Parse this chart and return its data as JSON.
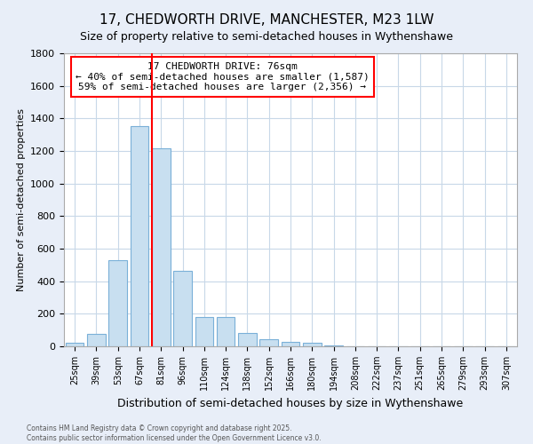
{
  "title": "17, CHEDWORTH DRIVE, MANCHESTER, M23 1LW",
  "subtitle": "Size of property relative to semi-detached houses in Wythenshawe",
  "xlabel": "Distribution of semi-detached houses by size in Wythenshawe",
  "ylabel": "Number of semi-detached properties",
  "bar_color": "#c8dff0",
  "bar_edge_color": "#7ab0d8",
  "categories": [
    "25sqm",
    "39sqm",
    "53sqm",
    "67sqm",
    "81sqm",
    "96sqm",
    "110sqm",
    "124sqm",
    "138sqm",
    "152sqm",
    "166sqm",
    "180sqm",
    "194sqm",
    "208sqm",
    "222sqm",
    "237sqm",
    "251sqm",
    "265sqm",
    "279sqm",
    "293sqm",
    "307sqm"
  ],
  "values": [
    20,
    75,
    530,
    1355,
    1215,
    465,
    180,
    180,
    80,
    45,
    30,
    20,
    5,
    0,
    0,
    0,
    0,
    0,
    0,
    0,
    0
  ],
  "ylim": [
    0,
    1800
  ],
  "yticks": [
    0,
    200,
    400,
    600,
    800,
    1000,
    1200,
    1400,
    1600,
    1800
  ],
  "vline_x": 4.0,
  "annotation_title": "17 CHEDWORTH DRIVE: 76sqm",
  "annotation_line1": "← 40% of semi-detached houses are smaller (1,587)",
  "annotation_line2": "59% of semi-detached houses are larger (2,356) →",
  "footer": "Contains HM Land Registry data © Crown copyright and database right 2025.\nContains public sector information licensed under the Open Government Licence v3.0.",
  "fig_bg_color": "#e8eef8",
  "plot_bg_color": "#ffffff",
  "grid_color": "#c8d8e8",
  "title_fontsize": 11,
  "subtitle_fontsize": 9
}
